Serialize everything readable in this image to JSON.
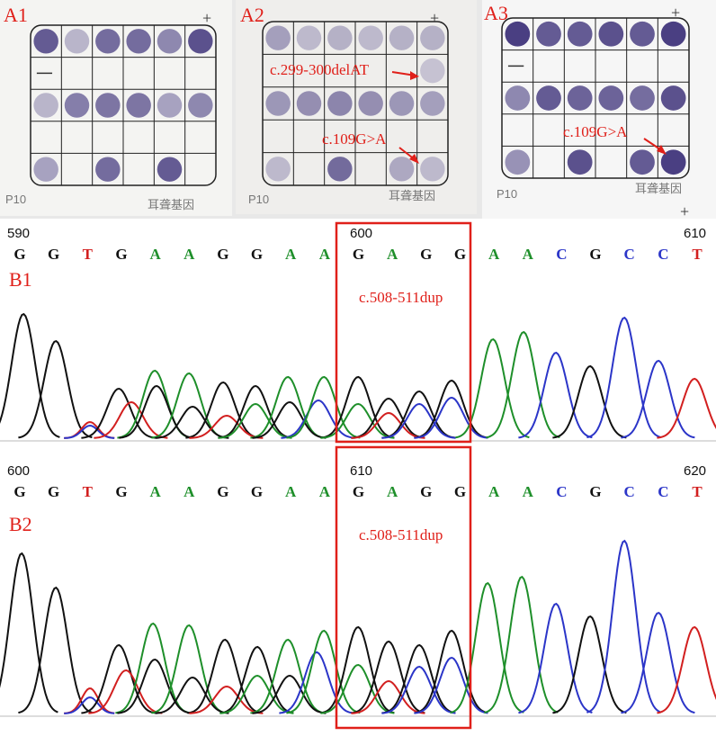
{
  "panel_a": {
    "labels": [
      "A1",
      "A2",
      "A3"
    ],
    "strip_footer_left": "P10",
    "strip_footer_right": "耳聋基因",
    "annotations": {
      "a2_top": "c.299-300delAT",
      "a2_bottom": "c.109G>A",
      "a3": "c.109G>A"
    },
    "colors": {
      "dot": "#4a3f82",
      "frame": "#222222",
      "red": "#e0201a"
    }
  },
  "panel_b": {
    "b1": {
      "label": "B1",
      "ruler": [
        "590",
        "600",
        "610"
      ],
      "bases": [
        "G",
        "G",
        "T",
        "G",
        "A",
        "A",
        "G",
        "G",
        "A",
        "A",
        "G",
        "A",
        "G",
        "G",
        "A",
        "A",
        "C",
        "G",
        "C",
        "C",
        "T"
      ],
      "box_label": "c.508-511dup"
    },
    "b2": {
      "label": "B2",
      "ruler": [
        "600",
        "610",
        "620"
      ],
      "bases": [
        "G",
        "G",
        "T",
        "G",
        "A",
        "A",
        "G",
        "G",
        "A",
        "A",
        "G",
        "A",
        "G",
        "G",
        "A",
        "A",
        "C",
        "G",
        "C",
        "C",
        "T"
      ],
      "box_label": "c.508-511dup"
    },
    "base_colors": {
      "G": "#111111",
      "A": "#1e8f2a",
      "T": "#d21f1f",
      "C": "#2b35c8"
    }
  }
}
